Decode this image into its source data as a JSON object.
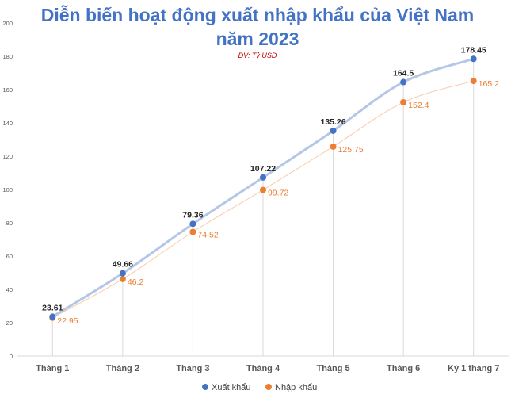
{
  "chart_data": {
    "type": "line",
    "title": "Diễn biến hoạt động xuất nhập khẩu của Việt Nam",
    "title_line2": "năm 2023",
    "unit_note": "ĐV: Tỷ USD",
    "categories": [
      "Tháng 1",
      "Tháng 2",
      "Tháng 3",
      "Tháng 4",
      "Tháng 5",
      "Tháng 6",
      "Kỳ 1 tháng 7"
    ],
    "series": [
      {
        "name": "Xuất khẩu",
        "values": [
          23.61,
          49.66,
          79.36,
          107.22,
          135.26,
          164.5,
          178.45
        ],
        "labels": [
          "23.61",
          "49.66",
          "79.36",
          "107.22",
          "135.26",
          "164.5",
          "178.45"
        ],
        "color": "#4472C4",
        "line_color": "#B4C7E7"
      },
      {
        "name": "Nhập khẩu",
        "values": [
          22.95,
          46.2,
          74.52,
          99.72,
          125.75,
          152.4,
          165.2
        ],
        "labels": [
          "22.95",
          "46.2",
          "74.52",
          "99.72",
          "125.75",
          "152.4",
          "165.2"
        ],
        "color": "#ED7D31",
        "line_color": "#F8CBAD"
      }
    ],
    "y_ticks": [
      "0",
      "20",
      "40",
      "60",
      "80",
      "100",
      "120",
      "140",
      "160",
      "180",
      "200"
    ],
    "ylim": [
      0,
      200
    ],
    "grid": false,
    "drop_lines": true,
    "legend_position": "bottom"
  },
  "colors": {
    "title": "#4472C4",
    "unit_note": "#C00000",
    "drop_line": "#D9D9D9",
    "axis": "#D9D9D9"
  }
}
